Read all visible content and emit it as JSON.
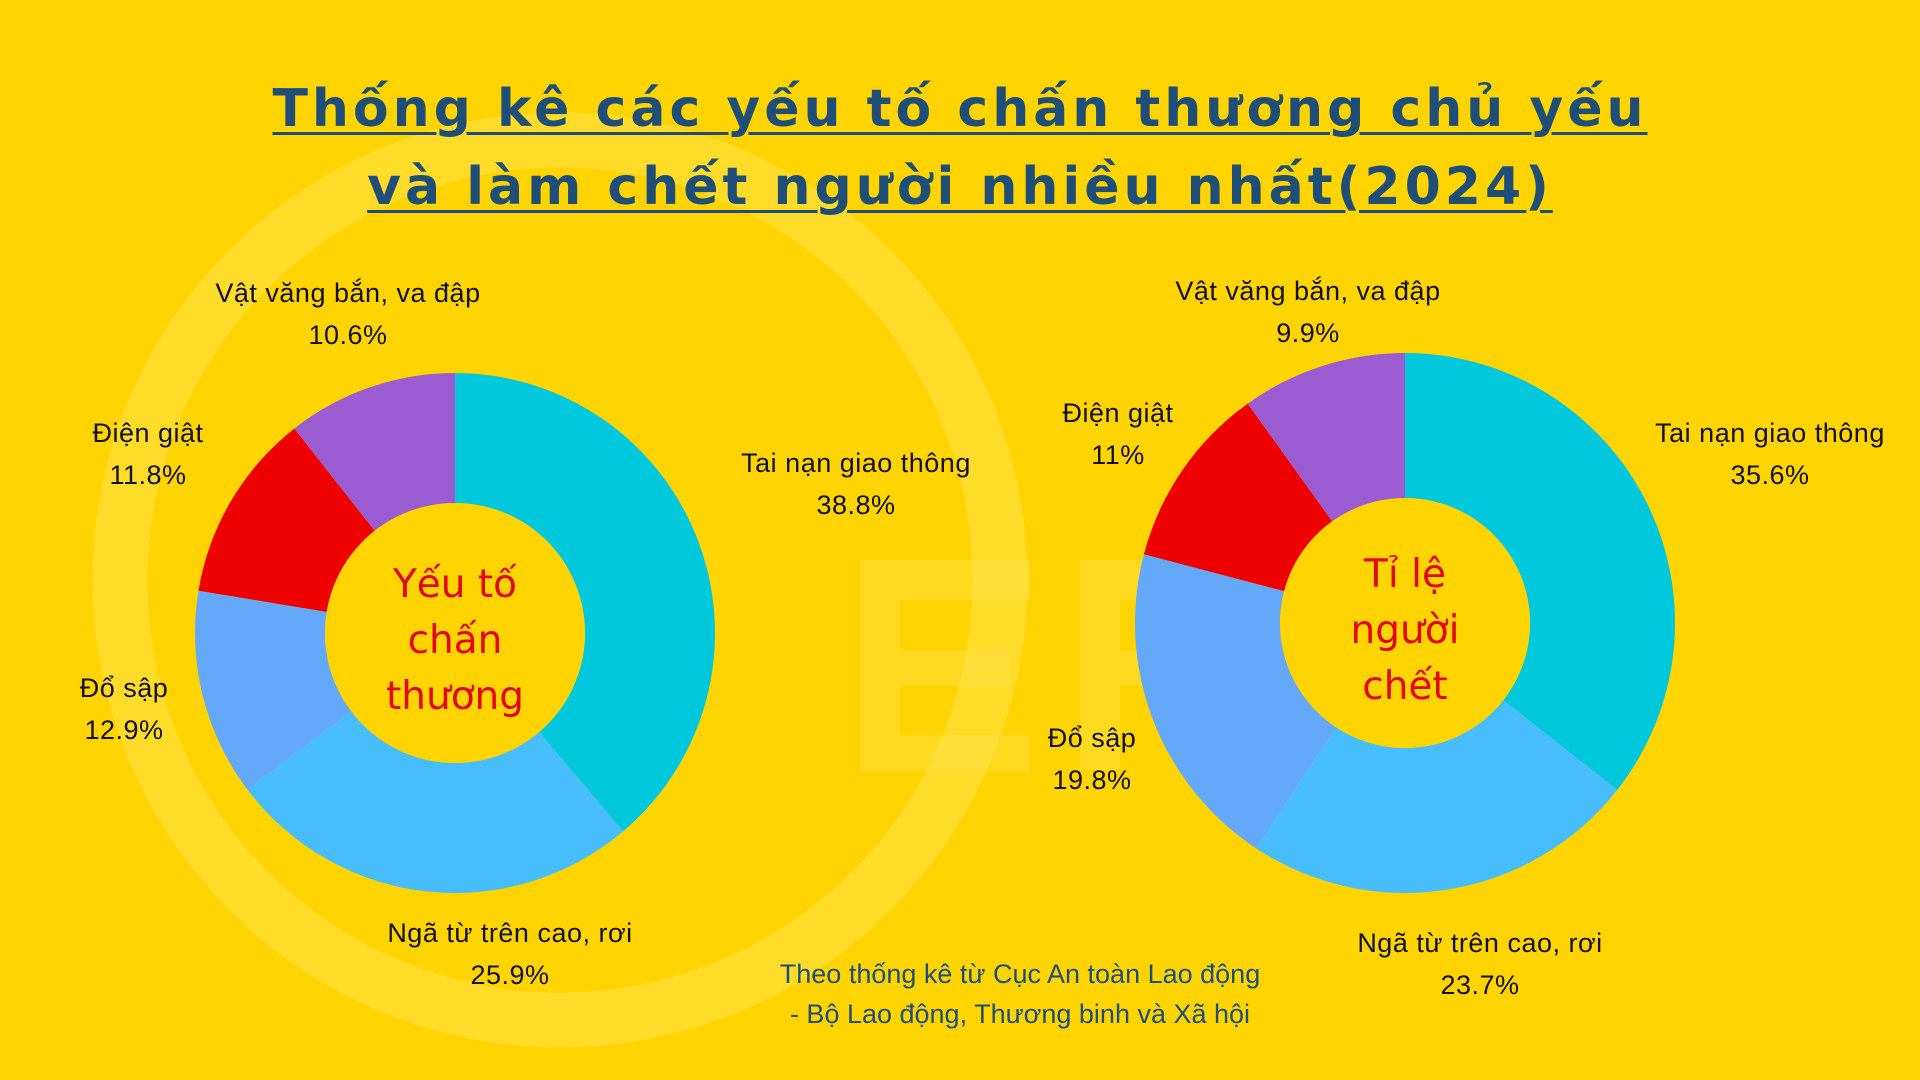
{
  "title": {
    "line1": "Thống kê các yếu tố chấn thương chủ yếu",
    "line2": "và làm chết người nhiều nhất(2024)"
  },
  "source": {
    "line1": "Theo thống kê từ Cục An toàn Lao động",
    "line2": "- Bộ Lao động, Thương binh và Xã hội"
  },
  "colors": {
    "background": "#FFD400",
    "title": "#1F4E79",
    "center_text": "#E30613",
    "slices": [
      "#00C8DC",
      "#47BEFB",
      "#64A8FA",
      "#EE0000",
      "#9A5CD0"
    ]
  },
  "chart_data": [
    {
      "type": "pie",
      "donut": true,
      "center_label": [
        "Yếu tố",
        "chấn",
        "thương"
      ],
      "labels": [
        "Tai nạn giao thông",
        "Ngã từ trên cao, rơi",
        "Đổ sập",
        "Điện giật",
        "Vật văng bắn, va đập"
      ],
      "values": [
        38.8,
        25.9,
        12.9,
        11.8,
        10.6
      ],
      "value_labels": [
        "38.8%",
        "25.9%",
        "12.9%",
        "11.8%",
        "10.6%"
      ]
    },
    {
      "type": "pie",
      "donut": true,
      "center_label": [
        "Tỉ lệ",
        "người",
        "chết"
      ],
      "labels": [
        "Tai nạn giao thông",
        "Ngã từ trên cao, rơi",
        "Đổ sập",
        "Điện giật",
        "Vật văng bắn, va đập"
      ],
      "values": [
        35.6,
        23.7,
        19.8,
        11,
        9.9
      ],
      "value_labels": [
        "35.6%",
        "23.7%",
        "19.8%",
        "11%",
        "9.9%"
      ]
    }
  ]
}
